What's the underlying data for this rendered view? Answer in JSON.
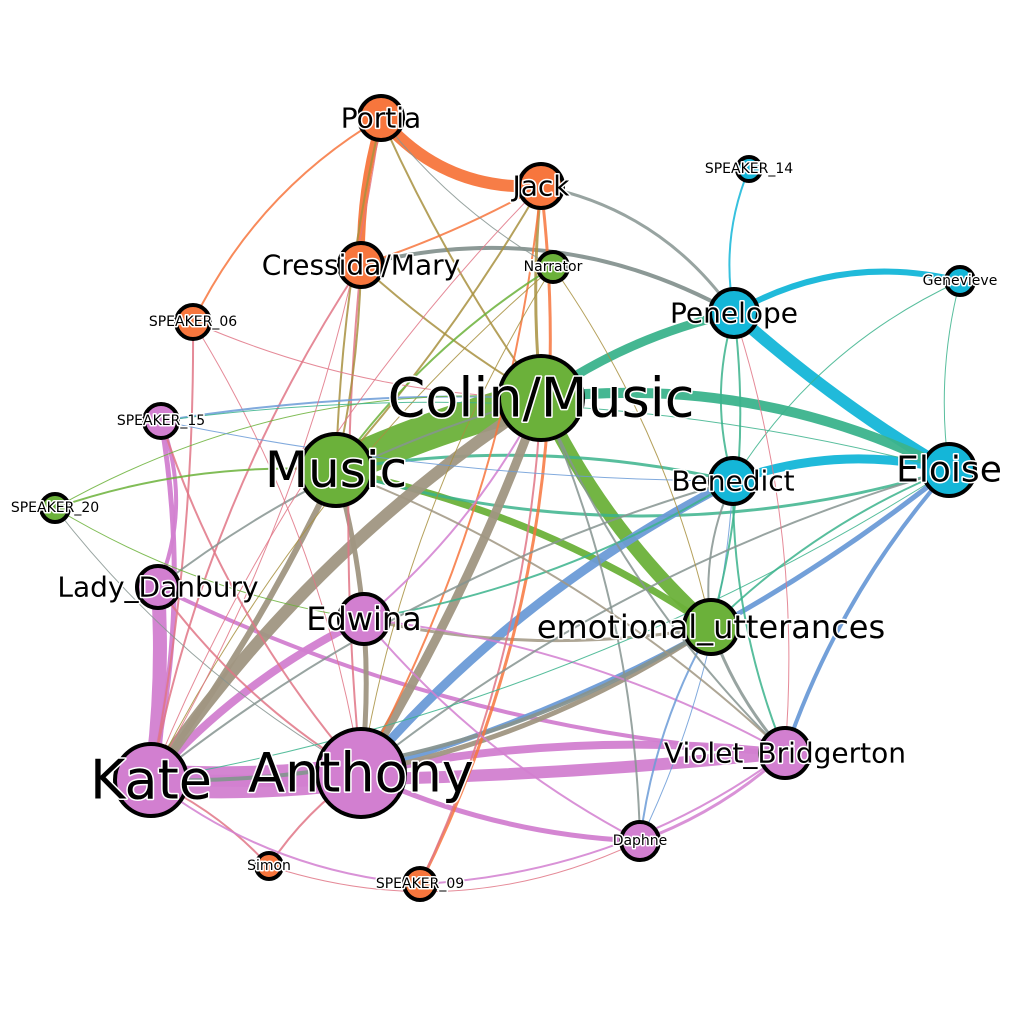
{
  "colors": {
    "orange": "#F7763D",
    "green": "#6BB13A",
    "blue": "#14B6D8",
    "pink": "#D27FD0",
    "teal": "#3BB38C",
    "steel_blue": "#6B9BD7",
    "tan": "#A09682",
    "olive": "#A8913F",
    "slate": "#869490",
    "rose": "#E07586"
  },
  "nodes": [
    {
      "id": "portia",
      "label": "Portia",
      "group": "orange"
    },
    {
      "id": "jack",
      "label": "Jack",
      "group": "orange"
    },
    {
      "id": "cressida",
      "label": "Cressida/Mary",
      "group": "orange"
    },
    {
      "id": "narrator",
      "label": "Narrator",
      "group": "green"
    },
    {
      "id": "speaker14",
      "label": "SPEAKER_14",
      "group": "blue"
    },
    {
      "id": "genevieve",
      "label": "Genevieve",
      "group": "blue"
    },
    {
      "id": "penelope",
      "label": "Penelope",
      "group": "blue"
    },
    {
      "id": "speaker06",
      "label": "SPEAKER_06",
      "group": "orange"
    },
    {
      "id": "colin",
      "label": "Colin/Music",
      "group": "green"
    },
    {
      "id": "speaker15",
      "label": "SPEAKER_15",
      "group": "pink"
    },
    {
      "id": "music",
      "label": "Music",
      "group": "green"
    },
    {
      "id": "eloise",
      "label": "Eloise",
      "group": "blue"
    },
    {
      "id": "benedict",
      "label": "Benedict",
      "group": "blue"
    },
    {
      "id": "speaker20",
      "label": "SPEAKER_20",
      "group": "green"
    },
    {
      "id": "danbury",
      "label": "Lady_Danbury",
      "group": "pink"
    },
    {
      "id": "edwina",
      "label": "Edwina",
      "group": "pink"
    },
    {
      "id": "emotional",
      "label": "emotional_utterances",
      "group": "green"
    },
    {
      "id": "violet",
      "label": "Violet_Bridgerton",
      "group": "pink"
    },
    {
      "id": "kate",
      "label": "Kate",
      "group": "pink"
    },
    {
      "id": "anthony",
      "label": "Anthony",
      "group": "pink"
    },
    {
      "id": "daphne",
      "label": "Daphne",
      "group": "pink"
    },
    {
      "id": "simon",
      "label": "Simon",
      "group": "orange"
    },
    {
      "id": "speaker09",
      "label": "SPEAKER_09",
      "group": "orange"
    }
  ]
}
